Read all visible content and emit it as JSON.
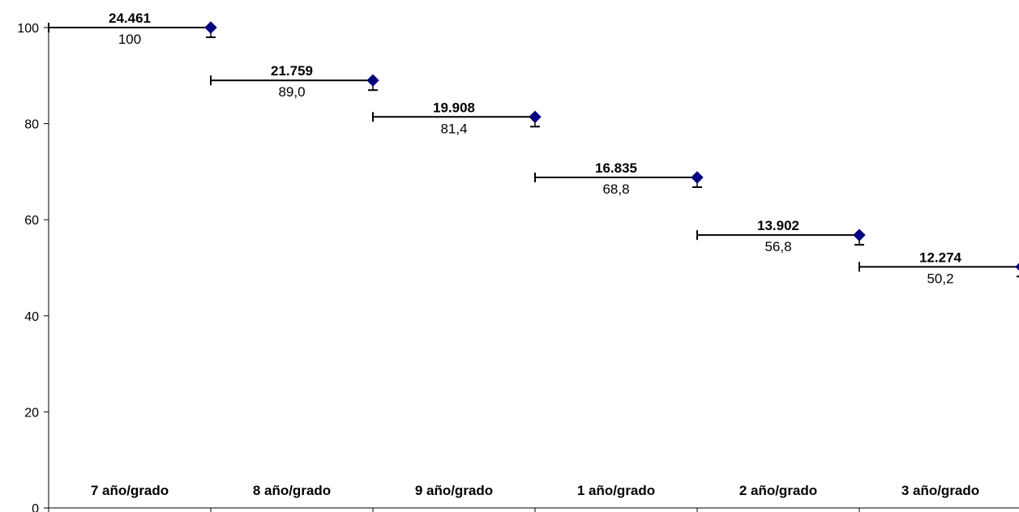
{
  "chart_data": {
    "type": "line",
    "title": "",
    "xlabel": "",
    "ylabel": "",
    "ylim": [
      0,
      100
    ],
    "yticks": [
      "0",
      "20",
      "40",
      "60",
      "80",
      "100"
    ],
    "categories": [
      "7 año/grado",
      "8 año/grado",
      "9 año/grado",
      "1 año/grado",
      "2 año/grado",
      "3 año/grado"
    ],
    "values": [
      100,
      89.0,
      81.4,
      68.8,
      56.8,
      50.2
    ],
    "value_labels": [
      "100",
      "89,0",
      "81,4",
      "68,8",
      "56,8",
      "50,2"
    ],
    "count_labels": [
      "24.461",
      "21.759",
      "19.908",
      "16.835",
      "13.902",
      "12.274"
    ],
    "marker_color": "#000080",
    "line_color": "#000000",
    "grid": false
  }
}
